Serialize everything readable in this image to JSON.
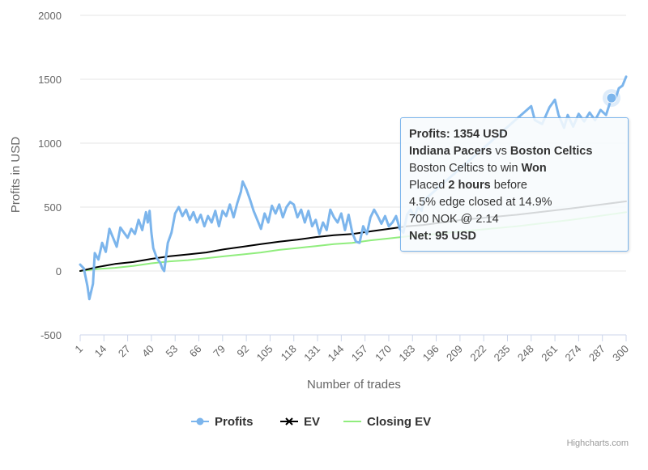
{
  "chart_data": {
    "type": "line",
    "title": "",
    "xlabel": "Number of trades",
    "ylabel": "Profits in USD",
    "xlim": [
      1,
      300
    ],
    "ylim": [
      -500,
      2000
    ],
    "yticks": [
      -500,
      0,
      500,
      1000,
      1500,
      2000
    ],
    "xticks": [
      1,
      14,
      27,
      40,
      53,
      66,
      79,
      92,
      105,
      118,
      131,
      144,
      157,
      170,
      183,
      196,
      209,
      222,
      235,
      248,
      261,
      274,
      287,
      300
    ],
    "legend_position": "bottom-center",
    "series": [
      {
        "name": "Profits",
        "color": "#7cb5ec",
        "points": [
          [
            1,
            50
          ],
          [
            3,
            20
          ],
          [
            5,
            -120
          ],
          [
            6,
            -220
          ],
          [
            8,
            -100
          ],
          [
            9,
            140
          ],
          [
            11,
            90
          ],
          [
            13,
            220
          ],
          [
            15,
            150
          ],
          [
            17,
            330
          ],
          [
            19,
            260
          ],
          [
            21,
            190
          ],
          [
            23,
            340
          ],
          [
            25,
            300
          ],
          [
            27,
            260
          ],
          [
            29,
            330
          ],
          [
            31,
            290
          ],
          [
            33,
            400
          ],
          [
            35,
            320
          ],
          [
            37,
            460
          ],
          [
            38,
            380
          ],
          [
            39,
            470
          ],
          [
            40,
            300
          ],
          [
            41,
            180
          ],
          [
            43,
            100
          ],
          [
            45,
            60
          ],
          [
            46,
            20
          ],
          [
            47,
            0
          ],
          [
            49,
            220
          ],
          [
            51,
            300
          ],
          [
            53,
            450
          ],
          [
            55,
            500
          ],
          [
            57,
            430
          ],
          [
            59,
            480
          ],
          [
            61,
            400
          ],
          [
            63,
            460
          ],
          [
            65,
            380
          ],
          [
            67,
            440
          ],
          [
            69,
            350
          ],
          [
            71,
            430
          ],
          [
            73,
            380
          ],
          [
            75,
            470
          ],
          [
            77,
            350
          ],
          [
            79,
            470
          ],
          [
            81,
            430
          ],
          [
            83,
            520
          ],
          [
            85,
            420
          ],
          [
            87,
            530
          ],
          [
            89,
            620
          ],
          [
            90,
            700
          ],
          [
            92,
            640
          ],
          [
            94,
            560
          ],
          [
            96,
            470
          ],
          [
            98,
            400
          ],
          [
            100,
            330
          ],
          [
            102,
            450
          ],
          [
            104,
            380
          ],
          [
            106,
            510
          ],
          [
            108,
            450
          ],
          [
            110,
            520
          ],
          [
            112,
            420
          ],
          [
            114,
            500
          ],
          [
            116,
            540
          ],
          [
            118,
            520
          ],
          [
            120,
            420
          ],
          [
            122,
            480
          ],
          [
            124,
            380
          ],
          [
            126,
            470
          ],
          [
            128,
            350
          ],
          [
            130,
            400
          ],
          [
            132,
            290
          ],
          [
            134,
            380
          ],
          [
            136,
            320
          ],
          [
            138,
            480
          ],
          [
            140,
            420
          ],
          [
            142,
            380
          ],
          [
            144,
            450
          ],
          [
            146,
            320
          ],
          [
            148,
            440
          ],
          [
            150,
            300
          ],
          [
            152,
            230
          ],
          [
            154,
            220
          ],
          [
            156,
            350
          ],
          [
            158,
            290
          ],
          [
            160,
            420
          ],
          [
            162,
            480
          ],
          [
            164,
            430
          ],
          [
            166,
            370
          ],
          [
            168,
            430
          ],
          [
            170,
            350
          ],
          [
            172,
            380
          ],
          [
            174,
            430
          ],
          [
            176,
            330
          ],
          [
            178,
            300
          ],
          [
            180,
            440
          ],
          [
            182,
            480
          ],
          [
            184,
            420
          ],
          [
            186,
            500
          ],
          [
            188,
            470
          ],
          [
            189,
            550
          ],
          [
            248,
            1290
          ],
          [
            250,
            1180
          ],
          [
            254,
            1150
          ],
          [
            258,
            1280
          ],
          [
            261,
            1340
          ],
          [
            263,
            1220
          ],
          [
            266,
            1120
          ],
          [
            268,
            1220
          ],
          [
            271,
            1130
          ],
          [
            274,
            1230
          ],
          [
            277,
            1170
          ],
          [
            280,
            1240
          ],
          [
            283,
            1180
          ],
          [
            286,
            1260
          ],
          [
            289,
            1220
          ],
          [
            292,
            1354
          ],
          [
            294,
            1340
          ],
          [
            296,
            1430
          ],
          [
            298,
            1450
          ],
          [
            300,
            1520
          ]
        ],
        "marker": [
          292,
          1354
        ]
      },
      {
        "name": "EV",
        "color": "#000000",
        "points": [
          [
            1,
            0
          ],
          [
            10,
            30
          ],
          [
            20,
            55
          ],
          [
            30,
            70
          ],
          [
            40,
            95
          ],
          [
            50,
            115
          ],
          [
            60,
            130
          ],
          [
            70,
            145
          ],
          [
            80,
            170
          ],
          [
            90,
            190
          ],
          [
            100,
            210
          ],
          [
            110,
            230
          ],
          [
            120,
            245
          ],
          [
            130,
            265
          ],
          [
            140,
            280
          ],
          [
            150,
            290
          ],
          [
            160,
            310
          ],
          [
            170,
            330
          ],
          [
            180,
            350
          ],
          [
            189,
            360
          ],
          [
            210,
            400
          ],
          [
            240,
            440
          ],
          [
            270,
            490
          ],
          [
            300,
            545
          ]
        ]
      },
      {
        "name": "Closing EV",
        "color": "#90ed7d",
        "points": [
          [
            1,
            0
          ],
          [
            10,
            15
          ],
          [
            20,
            25
          ],
          [
            30,
            40
          ],
          [
            40,
            60
          ],
          [
            50,
            75
          ],
          [
            60,
            85
          ],
          [
            70,
            100
          ],
          [
            80,
            115
          ],
          [
            90,
            130
          ],
          [
            100,
            145
          ],
          [
            110,
            165
          ],
          [
            120,
            180
          ],
          [
            130,
            195
          ],
          [
            140,
            210
          ],
          [
            150,
            220
          ],
          [
            160,
            240
          ],
          [
            170,
            255
          ],
          [
            180,
            270
          ],
          [
            189,
            280
          ],
          [
            210,
            310
          ],
          [
            240,
            350
          ],
          [
            270,
            400
          ],
          [
            300,
            460
          ]
        ]
      }
    ]
  },
  "tooltip": {
    "profits_label": "Profits: 1354 USD",
    "team_home": "Indiana Pacers",
    "vs_text": "vs",
    "team_away": "Boston Celtics",
    "bet_text": "Boston Celtics to win",
    "result": "Won",
    "placed_prefix": "Placed",
    "placed_time": "2 hours",
    "placed_suffix": "before",
    "edge_text": "4.5% edge closed at 14.9%",
    "stake_text": "700 NOK @ 2.14",
    "net_text": "Net: 95 USD"
  },
  "credits": "Highcharts.com"
}
